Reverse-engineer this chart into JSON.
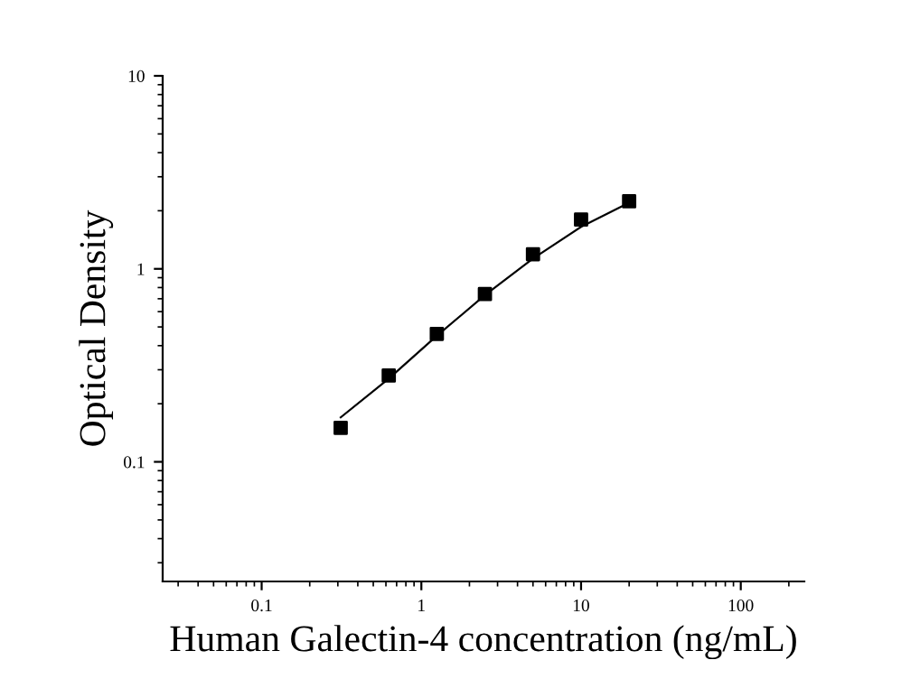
{
  "chart_data": {
    "type": "scatter",
    "xlabel": "Human Galectin-4 concentration (ng/mL)",
    "ylabel": "Optical Density",
    "log": "xy",
    "xlim": [
      0.024,
      250
    ],
    "ylim": [
      0.024,
      10
    ],
    "xticks": [
      0.1,
      1,
      10,
      100
    ],
    "yticks": [
      0.1,
      1,
      10
    ],
    "grid": false,
    "legend": false,
    "marker": "square",
    "series": [
      {
        "color": "#000000",
        "x": [
          0.3125,
          0.625,
          1.25,
          2.5,
          5,
          10,
          20
        ],
        "values": [
          0.15,
          0.28,
          0.46,
          0.74,
          1.19,
          1.8,
          2.24
        ]
      },
      {
        "type": "line",
        "color": "#000000",
        "marker": "none",
        "x": [
          0.3125,
          0.625,
          1.25,
          2.5,
          5,
          10,
          20
        ],
        "values": [
          0.17,
          0.27,
          0.45,
          0.73,
          1.13,
          1.65,
          2.2
        ]
      }
    ]
  }
}
